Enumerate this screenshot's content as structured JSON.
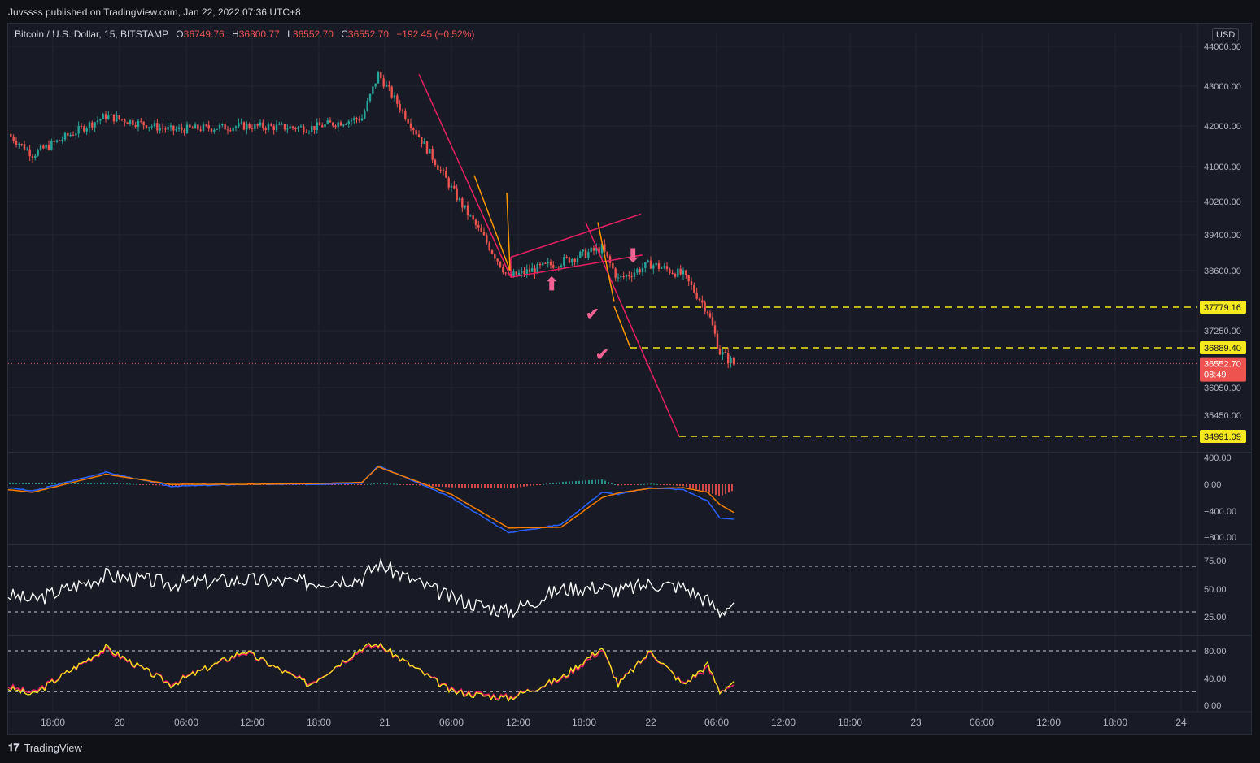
{
  "header": {
    "published": "Juvssss published on TradingView.com, Jan 22, 2022 07:36 UTC+8"
  },
  "legend": {
    "symbol": "Bitcoin / U.S. Dollar, 15, BITSTAMP",
    "open_label": "O",
    "open": "36749.76",
    "high_label": "H",
    "high": "36800.77",
    "low_label": "L",
    "low": "36552.70",
    "close_label": "C",
    "close": "36552.70",
    "change": "−192.45 (−0.52%)"
  },
  "price_axis": {
    "currency": "USD",
    "ticks": [
      "44000.00",
      "43000.00",
      "42000.00",
      "41000.00",
      "40200.00",
      "39400.00",
      "38600.00",
      "37250.00",
      "36050.00",
      "35450.00"
    ],
    "level_labels": [
      "37779.16",
      "36889.40",
      "34991.09"
    ],
    "current_price": "36552.70",
    "countdown": "08:49"
  },
  "macd_axis": {
    "ticks": [
      "400.00",
      "0.00",
      "−400.00",
      "−800.00"
    ]
  },
  "rsi_axis": {
    "ticks": [
      "75.00",
      "50.00",
      "25.00"
    ]
  },
  "stoch_axis": {
    "ticks": [
      "80.00",
      "40.00",
      "0.00"
    ]
  },
  "time_axis": {
    "ticks": [
      "18:00",
      "20",
      "06:00",
      "12:00",
      "18:00",
      "21",
      "06:00",
      "12:00",
      "18:00",
      "22",
      "06:00",
      "12:00",
      "18:00",
      "23",
      "06:00",
      "12:00",
      "18:00",
      "24"
    ]
  },
  "colors": {
    "up": "#26a69a",
    "down": "#ef5350",
    "level": "#f5e81c",
    "macd": "#2962ff",
    "signal": "#f57c00",
    "rsi": "#ffffff",
    "stoch_k": "#f5e81c",
    "stoch_d": "#e91e63",
    "annotation": "#f06292"
  },
  "chart_data": [
    {
      "type": "candlestick",
      "title": "Bitcoin / U.S. Dollar, 15, BITSTAMP",
      "ylim": [
        35000,
        44300
      ],
      "x": [
        "19 12:00",
        "19 18:00",
        "20",
        "20 06:00",
        "20 12:00",
        "20 18:00",
        "21",
        "21 06:00",
        "21 09:00",
        "21 12:00",
        "21 15:00",
        "21 18:00",
        "21 21:00",
        "22",
        "22 03:00",
        "22 05:00",
        "22 06:00",
        "22 07:30"
      ],
      "close": [
        41800,
        41300,
        42250,
        41900,
        42000,
        41950,
        42200,
        43300,
        40500,
        38450,
        38800,
        39100,
        38400,
        38750,
        38500,
        37700,
        36800,
        36552.7
      ],
      "levels": [
        37779.16,
        36889.4,
        34991.09
      ]
    },
    {
      "type": "line",
      "title": "",
      "ylim": [
        -800,
        400
      ],
      "series": [
        {
          "values": [
            -50,
            -100,
            180,
            -30,
            0,
            0,
            20,
            280,
            -200,
            -720,
            -600,
            -120,
            -150,
            -50,
            -80,
            -250,
            -500,
            -520
          ]
        },
        {
          "values": [
            -80,
            -120,
            150,
            0,
            0,
            10,
            30,
            260,
            -150,
            -650,
            -640,
            -200,
            -130,
            -60,
            -50,
            -120,
            -300,
            -420
          ]
        }
      ]
    },
    {
      "type": "line",
      "title": "",
      "ylim": [
        0,
        100
      ],
      "series": [
        {
          "values": [
            45,
            40,
            62,
            55,
            58,
            56,
            60,
            72,
            42,
            30,
            50,
            52,
            48,
            55,
            52,
            40,
            30,
            38
          ]
        }
      ]
    },
    {
      "type": "line",
      "title": "",
      "ylim": [
        0,
        100
      ],
      "series": [
        {
          "values": [
            25,
            15,
            85,
            30,
            80,
            30,
            85,
            90,
            20,
            10,
            40,
            85,
            30,
            80,
            30,
            60,
            20,
            35
          ]
        },
        {
          "values": [
            28,
            18,
            82,
            32,
            78,
            32,
            82,
            88,
            22,
            12,
            38,
            82,
            32,
            78,
            32,
            55,
            22,
            30
          ]
        }
      ]
    }
  ]
}
